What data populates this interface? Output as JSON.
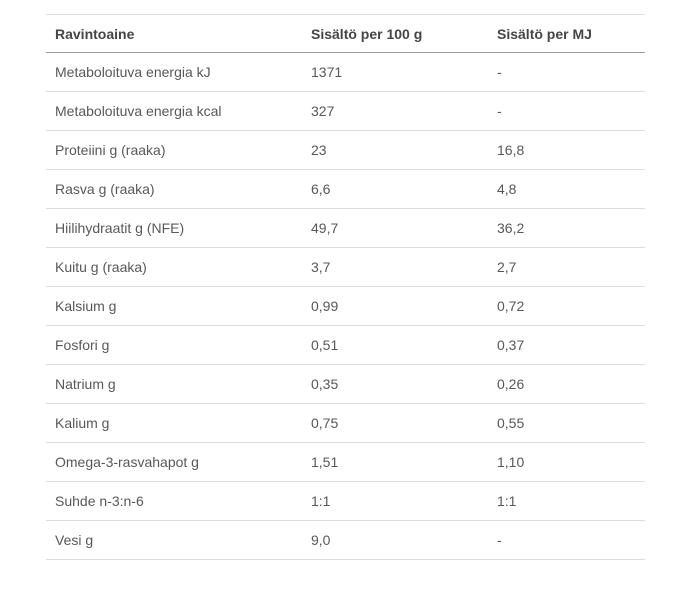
{
  "colors": {
    "background": "#ffffff",
    "header_text": "#454545",
    "body_text": "#58585b",
    "row_border": "#dcdcdc",
    "header_border": "#9e9e9e"
  },
  "chart_data": {
    "type": "table",
    "title": "",
    "columns": [
      "Ravintoaine",
      "Sisältö per 100 g",
      "Sisältö per MJ"
    ],
    "rows": [
      [
        "Metaboloituva energia kJ",
        "1371",
        "-"
      ],
      [
        "Metaboloituva energia kcal",
        "327",
        "-"
      ],
      [
        "Proteiini g (raaka)",
        "23",
        "16,8"
      ],
      [
        "Rasva g (raaka)",
        "6,6",
        "4,8"
      ],
      [
        "Hiilihydraatit g (NFE)",
        "49,7",
        "36,2"
      ],
      [
        "Kuitu g (raaka)",
        "3,7",
        "2,7"
      ],
      [
        "Kalsium g",
        "0,99",
        "0,72"
      ],
      [
        "Fosfori g",
        "0,51",
        "0,37"
      ],
      [
        "Natrium g",
        "0,35",
        "0,26"
      ],
      [
        "Kalium g",
        "0,75",
        "0,55"
      ],
      [
        "Omega-3-rasvahapot g",
        "1,51",
        "1,10"
      ],
      [
        "Suhde n-3:n-6",
        "1:1",
        "1:1"
      ],
      [
        "Vesi g",
        "9,0",
        "-"
      ]
    ]
  }
}
